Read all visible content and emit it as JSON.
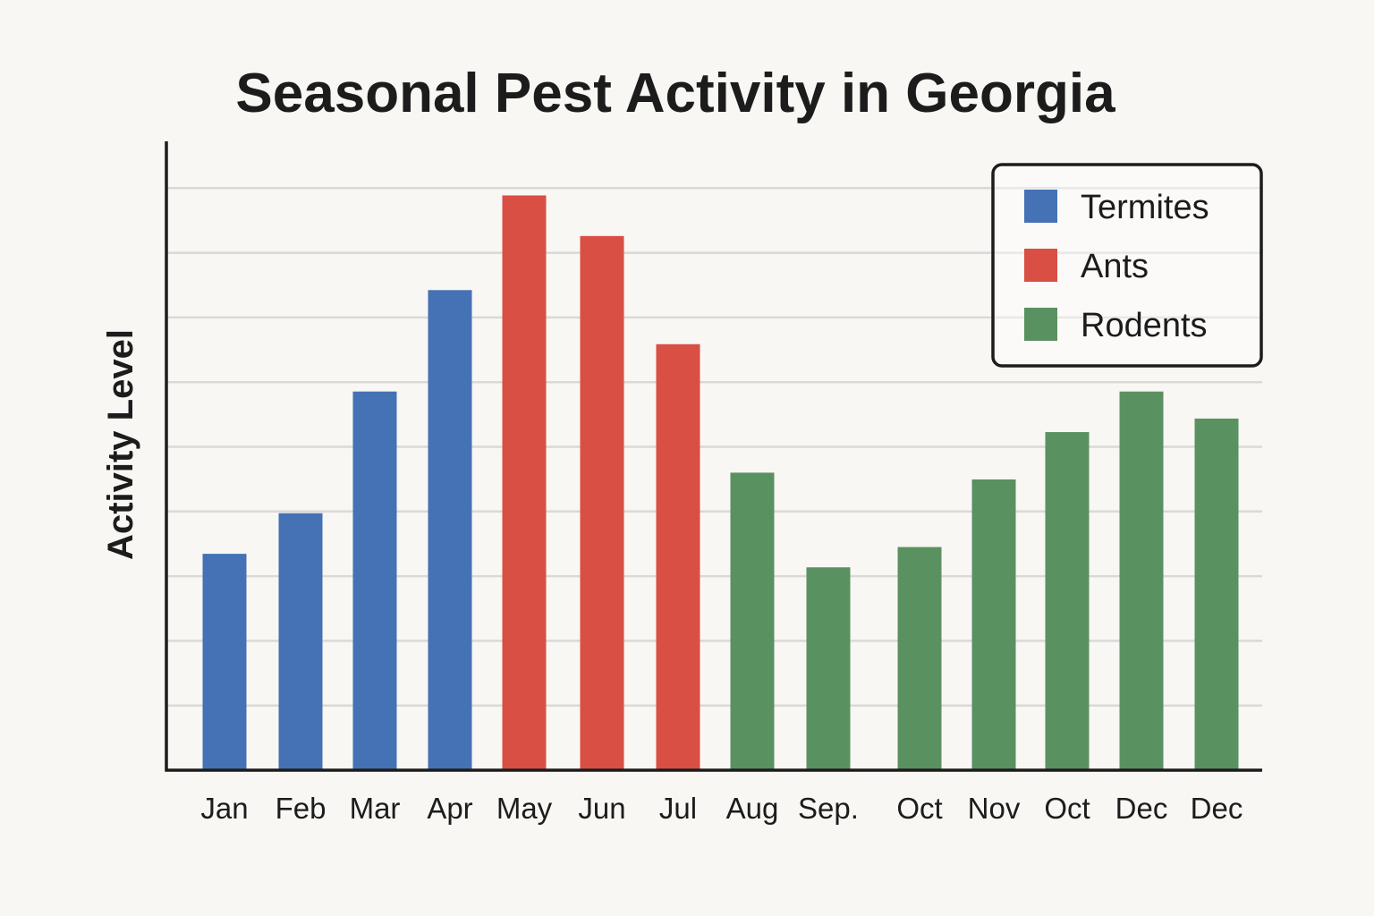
{
  "chart_data": {
    "type": "bar",
    "title": "Seasonal Pest Activity in Georgia",
    "xlabel": "",
    "ylabel": "Activity Level",
    "ylim": [
      0,
      9.3
    ],
    "grid": true,
    "legend_position": "top-right",
    "categories": [
      "Jan",
      "Feb",
      "Mar",
      "Apr",
      "May",
      "Jun",
      "Jul",
      "Aug",
      "Sep.",
      "Oct",
      "Nov",
      "Oct",
      "Dec",
      "Dec"
    ],
    "series": [
      {
        "name": "Termites",
        "color": "#4472b4",
        "values": [
          3.2,
          3.8,
          5.6,
          7.1,
          null,
          null,
          null,
          null,
          null,
          null,
          null,
          null,
          null,
          null
        ]
      },
      {
        "name": "Ants",
        "color": "#d94f43",
        "values": [
          null,
          null,
          null,
          null,
          8.5,
          7.9,
          6.3,
          null,
          null,
          null,
          null,
          null,
          null,
          null
        ]
      },
      {
        "name": "Rodents",
        "color": "#5a9160",
        "values": [
          null,
          null,
          null,
          null,
          null,
          null,
          null,
          4.4,
          3.0,
          3.3,
          4.3,
          5.0,
          5.6,
          5.2
        ]
      }
    ]
  }
}
